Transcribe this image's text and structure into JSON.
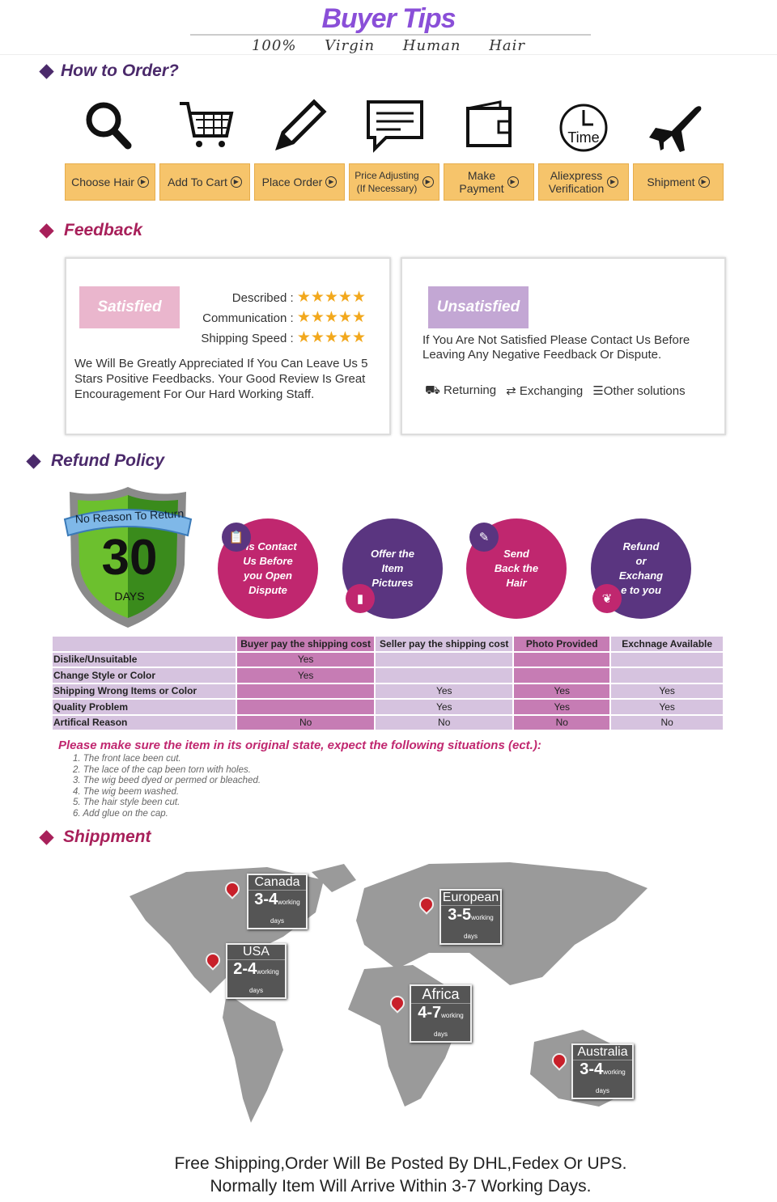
{
  "header": {
    "title": "Buyer Tips",
    "subtitle": "100% Virgin Human Hair"
  },
  "colors": {
    "accent_purple": "#4b2a6b",
    "pink": "#c0276f",
    "orange": "#f6c46b",
    "dark_purple": "#5a3580"
  },
  "how_to_order": {
    "heading": "How  to Order?",
    "steps": [
      {
        "icon": "search-icon",
        "label": "Choose Hair"
      },
      {
        "icon": "cart-icon",
        "label": "Add To Cart"
      },
      {
        "icon": "pencil-icon",
        "label": "Place Order"
      },
      {
        "icon": "chat-icon",
        "label": "Price Adjusting",
        "label2": "(If Necessary)"
      },
      {
        "icon": "wallet-icon",
        "label": "Make",
        "label2": "Payment"
      },
      {
        "icon": "clock-icon",
        "label": "Aliexpress",
        "label2": "Verification",
        "icon_text": "Time"
      },
      {
        "icon": "airplane-icon",
        "label": "Shipment"
      }
    ]
  },
  "feedback": {
    "heading": "Feedback",
    "satisfied": {
      "badge": "Satisfied",
      "ratings": [
        {
          "label": "Described :",
          "stars": 5
        },
        {
          "label": "Communication :",
          "stars": 5
        },
        {
          "label": "Shipping Speed :",
          "stars": 5
        }
      ],
      "text": "We Will Be Greatly Appreciated If You Can Leave Us 5 Stars Positive Feedbacks. Your Good Review Is Great Encouragement For Our Hard Working Staff."
    },
    "unsatisfied": {
      "badge": "Unsatisfied",
      "text": "If You Are Not Satisfied Please Contact Us Before Leaving Any Negative Feedback Or Dispute.",
      "options": [
        {
          "icon": "truck-icon",
          "label": "Returning"
        },
        {
          "icon": "exchange-icon",
          "label": "Exchanging"
        },
        {
          "icon": "list-icon",
          "label": "Other solutions"
        }
      ]
    }
  },
  "refund": {
    "heading": "Refund Policy",
    "shield": {
      "banner": "No Reason To Return",
      "number": "30",
      "unit": "DAYS"
    },
    "steps": [
      {
        "lines": [
          "Pls Contact",
          "Us Before",
          "you Open",
          "Dispute"
        ],
        "icon": "clipboard-icon"
      },
      {
        "lines": [
          "Offer the",
          "Item",
          "Pictures"
        ],
        "icon": "book-icon"
      },
      {
        "lines": [
          "Send",
          "Back the",
          "Hair"
        ],
        "icon": "pencil-icon"
      },
      {
        "lines": [
          "Refund",
          "or",
          "Exchang",
          "e to you"
        ],
        "icon": "feather-icon"
      }
    ],
    "table": {
      "headers": [
        "",
        "Buyer pay the shipping cost",
        "Seller pay the shipping cost",
        "Photo Provided",
        "Exchnage Available"
      ],
      "rows": [
        [
          "Dislike/Unsuitable",
          "Yes",
          "",
          "",
          ""
        ],
        [
          "Change Style or Color",
          "Yes",
          "",
          "",
          ""
        ],
        [
          "Shipping Wrong Items or Color",
          "",
          "Yes",
          "Yes",
          "Yes"
        ],
        [
          "Quality Problem",
          "",
          "Yes",
          "Yes",
          "Yes"
        ],
        [
          "Artifical Reason",
          "No",
          "No",
          "No",
          "No"
        ]
      ]
    },
    "note": "Please make sure the item in its original state, expect the following situations (ect.):",
    "situations": [
      "1. The front lace been cut.",
      "2. The lace of the cap been torn with holes.",
      "3. The wig beed dyed or permed or bleached.",
      "4. The wig beem washed.",
      "5. The hair style been cut.",
      "6. Add glue on the cap."
    ]
  },
  "shipment": {
    "heading": "Shippment",
    "regions": [
      {
        "name": "Canada",
        "days": "3-4"
      },
      {
        "name": "USA",
        "days": "2-4"
      },
      {
        "name": "European",
        "days": "3-5"
      },
      {
        "name": "Africa",
        "days": "4-7"
      },
      {
        "name": "Australia",
        "days": "3-4"
      }
    ],
    "days_unit": "working days",
    "footer1": "Free Shipping,Order Will Be Posted By DHL,Fedex Or UPS.",
    "footer2": "Normally Item Will Arrive Within 3-7 Working Days."
  }
}
